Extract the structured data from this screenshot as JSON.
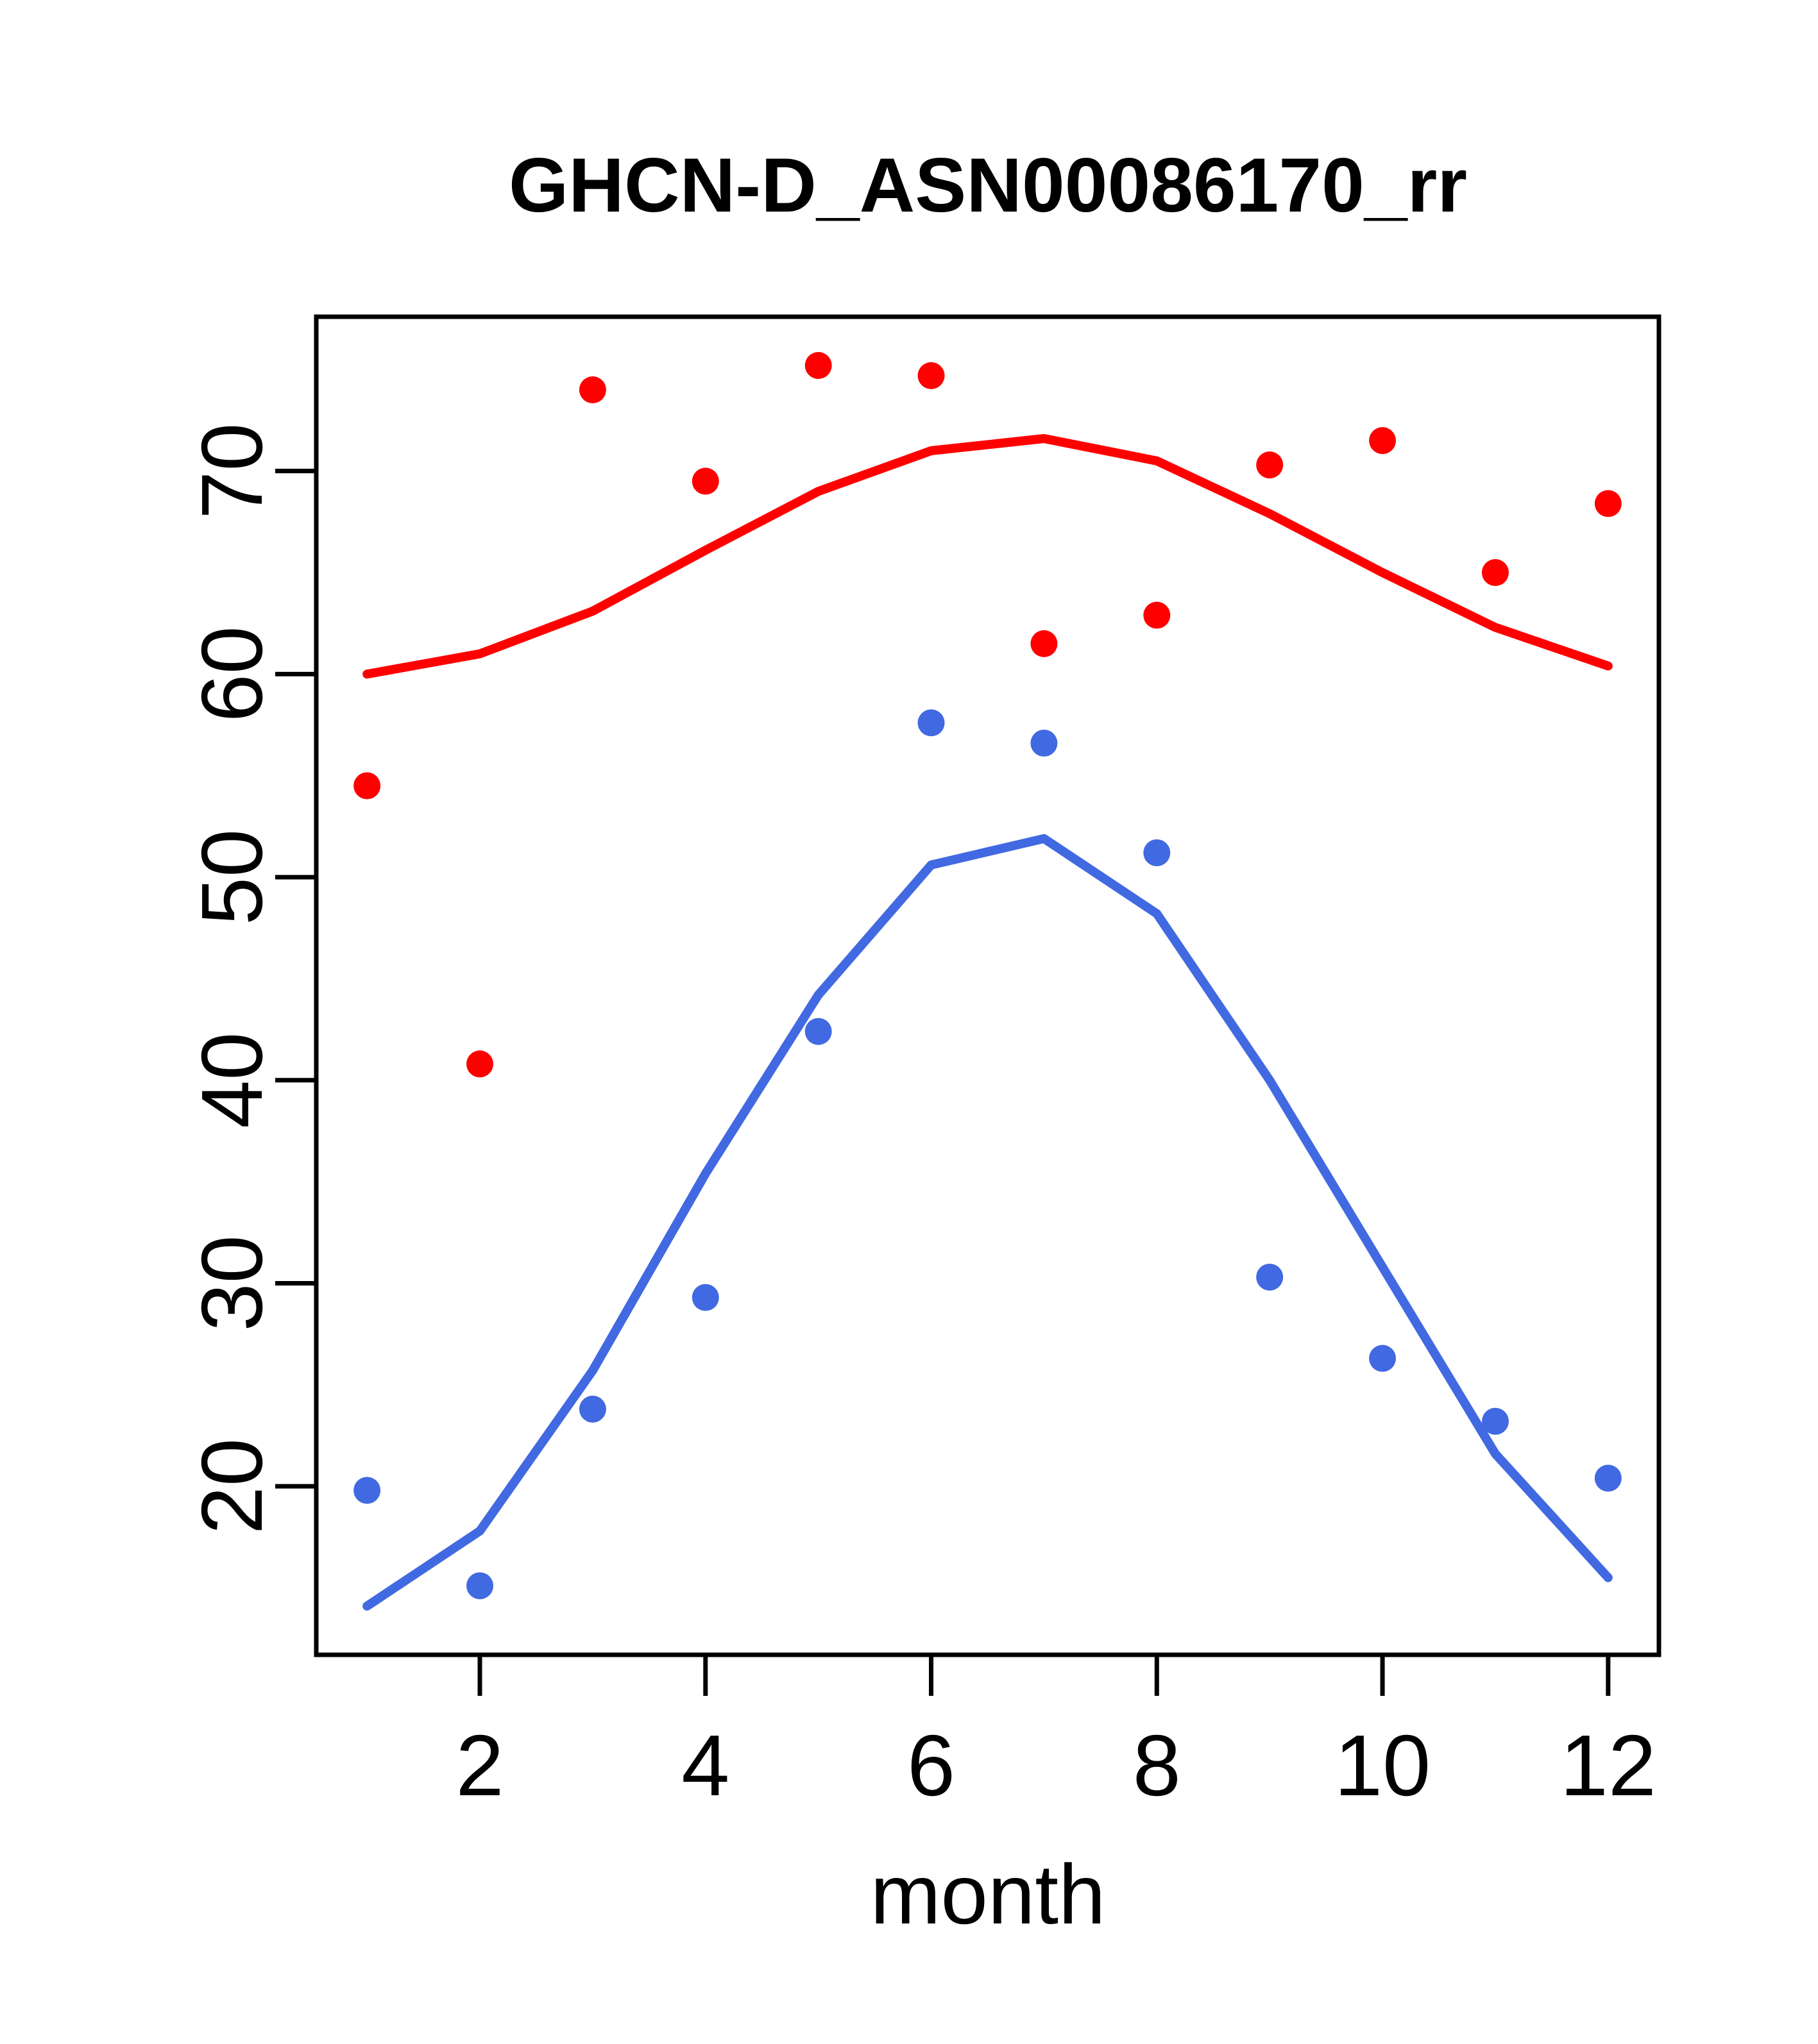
{
  "title": "GHCN-D_ASN00086170_rr",
  "xlabel": "month",
  "chart_data": {
    "type": "scatter",
    "title": "GHCN-D_ASN00086170_rr",
    "xlabel": "month",
    "ylabel": "",
    "grid": false,
    "legend": "none",
    "x": [
      1,
      2,
      3,
      4,
      5,
      6,
      7,
      8,
      9,
      10,
      11,
      12
    ],
    "x_ticks": [
      2,
      4,
      6,
      8,
      10,
      12
    ],
    "y_ticks": [
      20,
      30,
      40,
      50,
      60,
      70
    ],
    "xlim": [
      0.55,
      12.45
    ],
    "ylim": [
      11.7,
      77.6
    ],
    "colors": {
      "red": "#FF0000",
      "blue": "#4169E1"
    },
    "series": [
      {
        "name": "red-line",
        "type": "line",
        "color": "red",
        "values": [
          60.0,
          61.0,
          63.1,
          66.1,
          69.0,
          71.0,
          71.6,
          70.5,
          67.9,
          65.0,
          62.3,
          60.4
        ]
      },
      {
        "name": "red-points",
        "type": "scatter",
        "color": "red",
        "values": [
          54.5,
          40.8,
          74.0,
          69.5,
          75.2,
          74.7,
          61.5,
          62.9,
          70.3,
          71.5,
          65.0,
          68.4
        ]
      },
      {
        "name": "blue-line",
        "type": "line",
        "color": "blue",
        "values": [
          14.1,
          17.8,
          25.7,
          35.4,
          44.2,
          50.6,
          51.9,
          48.2,
          40.0,
          30.8,
          21.6,
          15.5
        ]
      },
      {
        "name": "blue-points",
        "type": "scatter",
        "color": "blue",
        "values": [
          19.8,
          15.1,
          23.8,
          29.3,
          42.4,
          57.6,
          56.6,
          51.2,
          30.3,
          26.3,
          23.2,
          20.4
        ]
      }
    ]
  }
}
